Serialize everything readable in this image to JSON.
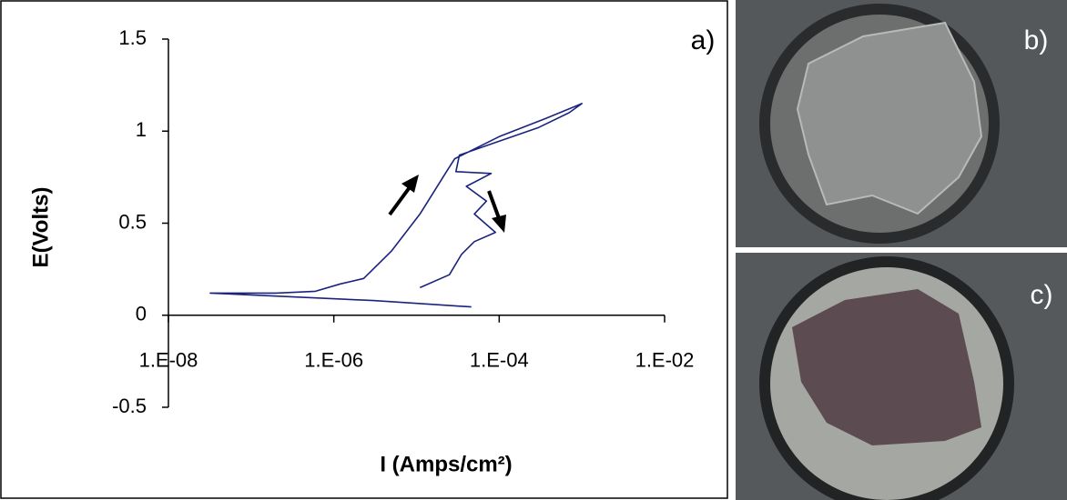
{
  "chart_data": {
    "type": "line",
    "panel_label": "a)",
    "xlabel": "I (Amps/cm²)",
    "ylabel": "E(Volts)",
    "xscale": "log",
    "color": "#1a237e",
    "xlim": [
      1e-08,
      0.01
    ],
    "xticks": [
      {
        "value": 1e-08,
        "label": "1.E-08"
      },
      {
        "value": 1e-06,
        "label": "1.E-06"
      },
      {
        "value": 0.0001,
        "label": "1.E-04"
      },
      {
        "value": 0.01,
        "label": "1.E-02"
      }
    ],
    "ylim": [
      -0.5,
      1.5
    ],
    "yticks": [
      -0.5,
      0,
      0.5,
      1,
      1.5
    ],
    "x": [
      4.6e-05,
      3e-06,
      3.2e-08,
      2e-07,
      6e-07,
      1.2e-06,
      2.3e-06,
      5e-06,
      1.1e-05,
      2.3e-05,
      2.9e-05,
      0.0001,
      0.00037,
      0.001,
      0.0007,
      0.0003,
      8e-05,
      3.3e-05,
      3e-05,
      8e-05,
      4e-05,
      7e-05,
      5e-05,
      9e-05,
      5e-05,
      3.5e-05,
      2.5e-05,
      1.1e-05
    ],
    "values": [
      0.045,
      0.08,
      0.12,
      0.12,
      0.13,
      0.17,
      0.2,
      0.35,
      0.55,
      0.78,
      0.85,
      0.97,
      1.07,
      1.15,
      1.1,
      1.02,
      0.93,
      0.87,
      0.78,
      0.77,
      0.7,
      0.62,
      0.55,
      0.45,
      0.4,
      0.33,
      0.22,
      0.15
    ]
  },
  "photos": [
    {
      "label": "b)"
    },
    {
      "label": "c)"
    }
  ]
}
